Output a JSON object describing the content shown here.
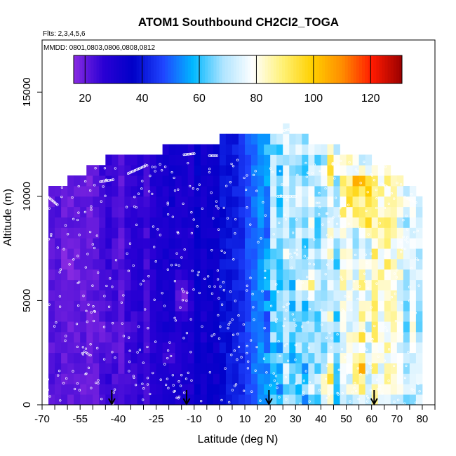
{
  "chart_data": {
    "type": "heatmap",
    "title": "ATOM1 Southbound CH2Cl2_TOGA",
    "flights_label": "Flts: 2,3,4,5,6",
    "dates_label": "MMDD: 0801,0803,0806,0808,0812",
    "xlabel": "Latitude (deg N)",
    "ylabel": "Altitude (m)",
    "xlim": [
      -70,
      85
    ],
    "ylim": [
      0,
      17500
    ],
    "x_ticks": [
      -70,
      -55,
      -40,
      -25,
      -10,
      0,
      10,
      20,
      30,
      40,
      50,
      60,
      70,
      80
    ],
    "y_ticks": [
      0,
      5000,
      10000,
      15000
    ],
    "colorbar": {
      "range": [
        16,
        131
      ],
      "ticks": [
        20,
        40,
        60,
        80,
        100,
        120
      ],
      "colors": [
        "#8a2be2",
        "#2a00d4",
        "#0000c8",
        "#1f45ff",
        "#00b8ff",
        "#aee4ff",
        "#ffffff",
        "#fff176",
        "#ffd000",
        "#ff8c00",
        "#ff1a00",
        "#9a0000"
      ]
    },
    "grid": {
      "lat_step": 2.5,
      "alt_step": 500
    },
    "columns": [
      {
        "lat": -67.5,
        "top": 10500
      },
      {
        "lat": -65,
        "top": 10500
      },
      {
        "lat": -62.5,
        "top": 10500
      },
      {
        "lat": -60,
        "top": 11000
      },
      {
        "lat": -57.5,
        "top": 11000
      },
      {
        "lat": -55,
        "top": 11000
      },
      {
        "lat": -52.5,
        "top": 11500
      },
      {
        "lat": -50,
        "top": 11500
      },
      {
        "lat": -47.5,
        "top": 11500
      },
      {
        "lat": -45,
        "top": 12000
      },
      {
        "lat": -42.5,
        "top": 12000
      },
      {
        "lat": -40,
        "top": 12000
      },
      {
        "lat": -37.5,
        "top": 12000
      },
      {
        "lat": -35,
        "top": 12000
      },
      {
        "lat": -32.5,
        "top": 12000
      },
      {
        "lat": -30,
        "top": 12000
      },
      {
        "lat": -27.5,
        "top": 12000
      },
      {
        "lat": -25,
        "top": 12000
      },
      {
        "lat": -22.5,
        "top": 12500
      },
      {
        "lat": -20,
        "top": 12500
      },
      {
        "lat": -17.5,
        "top": 12500
      },
      {
        "lat": -15,
        "top": 12500
      },
      {
        "lat": -12.5,
        "top": 12500
      },
      {
        "lat": -10,
        "top": 12500
      },
      {
        "lat": -7.5,
        "top": 12500
      },
      {
        "lat": -5,
        "top": 12500
      },
      {
        "lat": -2.5,
        "top": 12500
      },
      {
        "lat": 0,
        "top": 13000
      },
      {
        "lat": 2.5,
        "top": 13000
      },
      {
        "lat": 5,
        "top": 13000
      },
      {
        "lat": 7.5,
        "top": 13000
      },
      {
        "lat": 10,
        "top": 13000
      },
      {
        "lat": 12.5,
        "top": 13000
      },
      {
        "lat": 15,
        "top": 13000
      },
      {
        "lat": 17.5,
        "top": 13000
      },
      {
        "lat": 20,
        "top": 13000
      },
      {
        "lat": 22.5,
        "top": 13000
      },
      {
        "lat": 25,
        "top": 13500
      },
      {
        "lat": 27.5,
        "top": 13000
      },
      {
        "lat": 30,
        "top": 13000
      },
      {
        "lat": 32.5,
        "top": 13000
      },
      {
        "lat": 35,
        "top": 12500
      },
      {
        "lat": 37.5,
        "top": 12500
      },
      {
        "lat": 40,
        "top": 12500
      },
      {
        "lat": 42.5,
        "top": 12500
      },
      {
        "lat": 45,
        "top": 12500
      },
      {
        "lat": 47.5,
        "top": 12000
      },
      {
        "lat": 50,
        "top": 12000
      },
      {
        "lat": 52.5,
        "top": 12000
      },
      {
        "lat": 55,
        "top": 12000
      },
      {
        "lat": 57.5,
        "top": 12000
      },
      {
        "lat": 60,
        "top": 11500
      },
      {
        "lat": 62.5,
        "top": 11500
      },
      {
        "lat": 65,
        "top": 11500
      },
      {
        "lat": 67.5,
        "top": 11000
      },
      {
        "lat": 70,
        "top": 11000
      },
      {
        "lat": 72.5,
        "top": 10500
      },
      {
        "lat": 75,
        "top": 10500
      },
      {
        "lat": 77.5,
        "top": 10000
      }
    ],
    "profile": [
      {
        "lat": -70,
        "value": 20
      },
      {
        "lat": -55,
        "value": 21
      },
      {
        "lat": -45,
        "value": 22
      },
      {
        "lat": -35,
        "value": 24
      },
      {
        "lat": -25,
        "value": 27
      },
      {
        "lat": -15,
        "value": 31
      },
      {
        "lat": -5,
        "value": 34
      },
      {
        "lat": 0,
        "value": 36
      },
      {
        "lat": 5,
        "value": 40
      },
      {
        "lat": 10,
        "value": 46
      },
      {
        "lat": 15,
        "value": 54
      },
      {
        "lat": 20,
        "value": 60
      },
      {
        "lat": 30,
        "value": 63
      },
      {
        "lat": 40,
        "value": 66
      },
      {
        "lat": 50,
        "value": 72
      },
      {
        "lat": 60,
        "value": 76
      },
      {
        "lat": 70,
        "value": 74
      },
      {
        "lat": 80,
        "value": 72
      }
    ],
    "hotspots": [
      {
        "lat": 55,
        "alt": 10700,
        "value": 120,
        "dlat": 2,
        "dalt": 500
      },
      {
        "lat": 57.5,
        "alt": 10500,
        "value": 115,
        "dlat": 2,
        "dalt": 500
      },
      {
        "lat": 32.5,
        "alt": 10300,
        "value": 125,
        "dlat": 1,
        "dalt": 500
      },
      {
        "lat": 55,
        "alt": 9700,
        "value": 98,
        "dlat": 5,
        "dalt": 800
      },
      {
        "lat": 57.5,
        "alt": 8800,
        "value": 100,
        "dlat": 2,
        "dalt": 500
      },
      {
        "lat": 32.5,
        "alt": 5700,
        "value": 122,
        "dlat": 1,
        "dalt": 500
      },
      {
        "lat": 37.5,
        "alt": 5700,
        "value": 112,
        "dlat": 1,
        "dalt": 500
      },
      {
        "lat": 55.5,
        "alt": 4000,
        "value": 97,
        "dlat": 2,
        "dalt": 2500
      },
      {
        "lat": 55.5,
        "alt": 1600,
        "value": 120,
        "dlat": 1.5,
        "dalt": 600
      },
      {
        "lat": 55.5,
        "alt": 700,
        "value": 95,
        "dlat": 2,
        "dalt": 800
      },
      {
        "lat": 42.5,
        "alt": 1200,
        "value": 86,
        "dlat": 3,
        "dalt": 700
      },
      {
        "lat": 37.5,
        "alt": 12400,
        "value": 97,
        "dlat": 1,
        "dalt": 500
      },
      {
        "lat": 45,
        "alt": 11500,
        "value": 90,
        "dlat": 2,
        "dalt": 600
      },
      {
        "lat": 30,
        "alt": 8000,
        "value": 85,
        "dlat": 1,
        "dalt": 500
      },
      {
        "lat": -60,
        "alt": 6700,
        "value": 16,
        "dlat": 3,
        "dalt": 700
      },
      {
        "lat": -45,
        "alt": 3500,
        "value": 17,
        "dlat": 3,
        "dalt": 900
      },
      {
        "lat": -20,
        "alt": 2500,
        "value": 19,
        "dlat": 3,
        "dalt": 800
      },
      {
        "lat": -15,
        "alt": 5200,
        "value": 17,
        "dlat": 3,
        "dalt": 900
      }
    ],
    "markers": [
      -42.5,
      -13,
      19.5,
      61
    ],
    "flight_legs": [
      {
        "from": [
          -69,
          10100
        ],
        "to": [
          -64,
          9600
        ]
      },
      {
        "from": [
          -47,
          10700
        ],
        "to": [
          -42,
          10800
        ]
      },
      {
        "from": [
          -36,
          11100
        ],
        "to": [
          -29.5,
          11450
        ]
      },
      {
        "from": [
          -14,
          12000
        ],
        "to": [
          -10,
          12050
        ]
      },
      {
        "from": [
          -4,
          11950
        ],
        "to": [
          -1,
          11950
        ]
      },
      {
        "from": [
          25,
          13150
        ],
        "to": [
          27.5,
          13200
        ]
      },
      {
        "from": [
          23,
          10000
        ],
        "to": [
          30,
          10000
        ]
      },
      {
        "from": [
          64,
          10600
        ],
        "to": [
          67,
          10400
        ]
      },
      {
        "from": [
          74,
          9900
        ],
        "to": [
          77.5,
          9700
        ]
      }
    ],
    "sample_points": {
      "count": 620,
      "lat_range": [
        -69,
        79
      ],
      "alt_range": [
        50,
        11800
      ]
    }
  }
}
